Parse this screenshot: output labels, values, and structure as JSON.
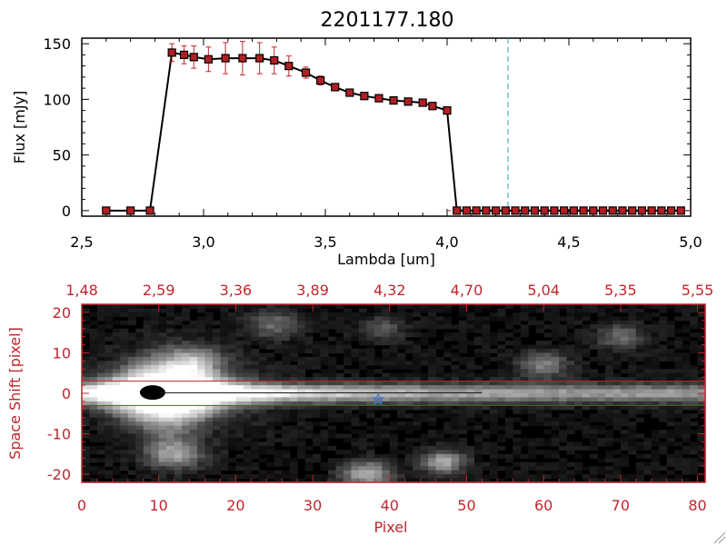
{
  "chart_data": [
    {
      "type": "line",
      "title": "2201177.180",
      "xlabel": "Lambda [um]",
      "ylabel": "Flux [mJy]",
      "xlim": [
        2.5,
        5.0
      ],
      "ylim": [
        -5,
        155
      ],
      "x_ticks": [
        {
          "v": 2.5,
          "label": "2,5"
        },
        {
          "v": 3.0,
          "label": "3,0"
        },
        {
          "v": 3.5,
          "label": "3,5"
        },
        {
          "v": 4.0,
          "label": "4,0"
        },
        {
          "v": 4.5,
          "label": "4,5"
        },
        {
          "v": 5.0,
          "label": "5,0"
        }
      ],
      "y_ticks": [
        {
          "v": 0,
          "label": "0"
        },
        {
          "v": 50,
          "label": "50"
        },
        {
          "v": 100,
          "label": "100"
        },
        {
          "v": 150,
          "label": "150"
        }
      ],
      "series": [
        {
          "x": [
            2.6,
            2.7,
            2.78,
            2.87,
            2.92,
            2.96,
            3.02,
            3.09,
            3.16,
            3.23,
            3.29,
            3.35,
            3.42,
            3.48,
            3.54,
            3.6,
            3.66,
            3.72,
            3.78,
            3.84,
            3.9,
            3.94,
            4.0,
            4.04,
            4.08,
            4.12,
            4.16,
            4.2,
            4.24,
            4.28,
            4.32,
            4.36,
            4.4,
            4.44,
            4.48,
            4.52,
            4.56,
            4.6,
            4.64,
            4.68,
            4.72,
            4.76,
            4.8,
            4.84,
            4.88,
            4.92,
            4.96
          ],
          "y": [
            0,
            0,
            0,
            142,
            140,
            138,
            136,
            137,
            137,
            137,
            135,
            130,
            124,
            117,
            111,
            106,
            103,
            101,
            99,
            98,
            97,
            94,
            90,
            0,
            0,
            0,
            0,
            0,
            0,
            0,
            0,
            0,
            0,
            0,
            0,
            0,
            0,
            0,
            0,
            0,
            0,
            0,
            0,
            0,
            0,
            0,
            0
          ],
          "yerr": [
            0,
            0,
            0,
            8,
            8,
            10,
            11,
            14,
            15,
            14,
            12,
            9,
            5,
            4,
            3,
            3,
            3,
            3,
            3,
            2,
            2,
            2,
            2,
            0,
            0,
            0,
            0,
            0,
            0,
            0,
            0,
            0,
            0,
            0,
            0,
            0,
            0,
            0,
            0,
            0,
            0,
            0,
            0,
            0,
            0,
            0,
            0
          ],
          "color": "#000000",
          "marker_color": "#b11f24",
          "errorbar_color": "#c0262c"
        }
      ],
      "reference_line": {
        "x": 4.25,
        "color": "#2aa6b4",
        "style": "dashed"
      },
      "zero_line": {
        "y": 0,
        "color": "#c0262c",
        "style": "dashed",
        "x_from": 4.0
      }
    },
    {
      "type": "heatmap",
      "xlabel": "Pixel",
      "ylabel": "Space Shift [pixel]",
      "xlim": [
        0,
        81
      ],
      "ylim": [
        -22,
        22
      ],
      "x_ticks": [
        {
          "v": 0,
          "label": "0"
        },
        {
          "v": 10,
          "label": "10"
        },
        {
          "v": 20,
          "label": "20"
        },
        {
          "v": 30,
          "label": "30"
        },
        {
          "v": 40,
          "label": "40"
        },
        {
          "v": 50,
          "label": "50"
        },
        {
          "v": 60,
          "label": "60"
        },
        {
          "v": 70,
          "label": "70"
        },
        {
          "v": 80,
          "label": "80"
        }
      ],
      "top_ticks": [
        {
          "v": 0,
          "label": "1,48"
        },
        {
          "v": 10,
          "label": "2,59"
        },
        {
          "v": 20,
          "label": "3,36"
        },
        {
          "v": 30,
          "label": "3,89"
        },
        {
          "v": 40,
          "label": "4,32"
        },
        {
          "v": 50,
          "label": "4,70"
        },
        {
          "v": 60,
          "label": "5,04"
        },
        {
          "v": 70,
          "label": "5,35"
        },
        {
          "v": 80,
          "label": "5,55"
        }
      ],
      "y_ticks": [
        {
          "v": -20,
          "label": "-20"
        },
        {
          "v": -10,
          "label": "-10"
        },
        {
          "v": 0,
          "label": "0"
        },
        {
          "v": 10,
          "label": "10"
        },
        {
          "v": 20,
          "label": "20"
        }
      ],
      "aperture": {
        "y_low": -3,
        "y_high": 3,
        "color": "#c0262c"
      },
      "source_marker": {
        "x": 38.5,
        "y": -1.5,
        "symbol": "star",
        "color": "#3a7fd6"
      },
      "colormap": "grayscale",
      "axis_color": "#c0262c"
    }
  ]
}
